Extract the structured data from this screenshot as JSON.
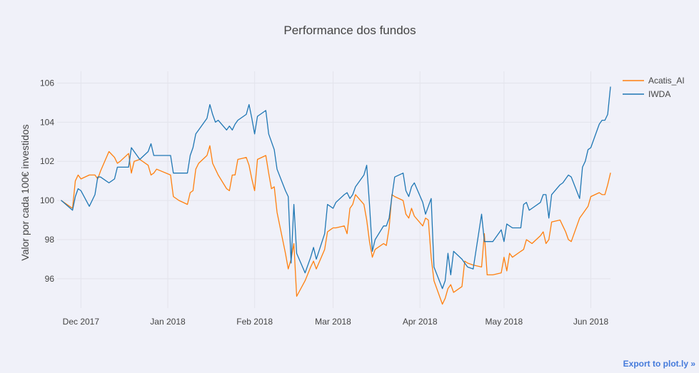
{
  "export_link": "Export to plot.ly »",
  "chart_data": {
    "type": "line",
    "title": "Performance dos fundos",
    "xlabel": "",
    "ylabel": "Valor por cada 100€ investidos",
    "ylim": [
      94.5,
      106.6
    ],
    "yticks": [
      96,
      98,
      100,
      102,
      104,
      106
    ],
    "ytick_labels": [
      "96",
      "98",
      "100",
      "102",
      "104",
      "106"
    ],
    "xlim": [
      "2017-11-23",
      "2018-06-08"
    ],
    "xticks": [
      "2017-12-01",
      "2018-01-01",
      "2018-02-01",
      "2018-03-01",
      "2018-04-01",
      "2018-05-01",
      "2018-06-01"
    ],
    "xtick_labels": [
      "Dec 2017",
      "Jan 2018",
      "Feb 2018",
      "Mar 2018",
      "Apr 2018",
      "May 2018",
      "Jun 2018"
    ],
    "legend_position": "top-right",
    "grid": true,
    "series": [
      {
        "name": "Acatis_AI",
        "color": "#ff7f0e",
        "points": [
          [
            "2017-11-24",
            100.0
          ],
          [
            "2017-11-28",
            99.6
          ],
          [
            "2017-11-29",
            101.0
          ],
          [
            "2017-11-30",
            101.3
          ],
          [
            "2017-12-01",
            101.1
          ],
          [
            "2017-12-04",
            101.3
          ],
          [
            "2017-12-06",
            101.3
          ],
          [
            "2017-12-07",
            101.1
          ],
          [
            "2017-12-08",
            101.5
          ],
          [
            "2017-12-11",
            102.5
          ],
          [
            "2017-12-13",
            102.2
          ],
          [
            "2017-12-14",
            101.9
          ],
          [
            "2017-12-15",
            102.0
          ],
          [
            "2017-12-18",
            102.4
          ],
          [
            "2017-12-19",
            101.4
          ],
          [
            "2017-12-20",
            102.0
          ],
          [
            "2017-12-22",
            102.1
          ],
          [
            "2017-12-25",
            101.8
          ],
          [
            "2017-12-26",
            101.3
          ],
          [
            "2017-12-27",
            101.4
          ],
          [
            "2017-12-28",
            101.6
          ],
          [
            "2018-01-02",
            101.3
          ],
          [
            "2018-01-03",
            100.2
          ],
          [
            "2018-01-05",
            100.0
          ],
          [
            "2018-01-08",
            99.8
          ],
          [
            "2018-01-09",
            100.4
          ],
          [
            "2018-01-10",
            100.5
          ],
          [
            "2018-01-11",
            101.6
          ],
          [
            "2018-01-12",
            101.9
          ],
          [
            "2018-01-15",
            102.3
          ],
          [
            "2018-01-16",
            102.8
          ],
          [
            "2018-01-17",
            101.9
          ],
          [
            "2018-01-18",
            101.6
          ],
          [
            "2018-01-19",
            101.3
          ],
          [
            "2018-01-22",
            100.6
          ],
          [
            "2018-01-23",
            100.5
          ],
          [
            "2018-01-24",
            101.3
          ],
          [
            "2018-01-25",
            101.3
          ],
          [
            "2018-01-26",
            102.1
          ],
          [
            "2018-01-29",
            102.2
          ],
          [
            "2018-01-30",
            101.8
          ],
          [
            "2018-01-31",
            101.1
          ],
          [
            "2018-02-01",
            100.5
          ],
          [
            "2018-02-02",
            102.1
          ],
          [
            "2018-02-05",
            102.3
          ],
          [
            "2018-02-06",
            101.4
          ],
          [
            "2018-02-07",
            100.6
          ],
          [
            "2018-02-08",
            100.7
          ],
          [
            "2018-02-09",
            99.4
          ],
          [
            "2018-02-12",
            97.3
          ],
          [
            "2018-02-13",
            96.5
          ],
          [
            "2018-02-14",
            97.0
          ],
          [
            "2018-02-15",
            97.8
          ],
          [
            "2018-02-16",
            95.1
          ],
          [
            "2018-02-19",
            95.9
          ],
          [
            "2018-02-21",
            96.6
          ],
          [
            "2018-02-22",
            96.9
          ],
          [
            "2018-02-23",
            96.5
          ],
          [
            "2018-02-26",
            97.5
          ],
          [
            "2018-02-27",
            98.4
          ],
          [
            "2018-02-28",
            98.5
          ],
          [
            "2018-03-01",
            98.6
          ],
          [
            "2018-03-02",
            98.6
          ],
          [
            "2018-03-05",
            98.7
          ],
          [
            "2018-03-06",
            98.3
          ],
          [
            "2018-03-07",
            99.6
          ],
          [
            "2018-03-08",
            99.8
          ],
          [
            "2018-03-09",
            100.3
          ],
          [
            "2018-03-12",
            99.8
          ],
          [
            "2018-03-13",
            99.0
          ],
          [
            "2018-03-14",
            97.9
          ],
          [
            "2018-03-15",
            97.1
          ],
          [
            "2018-03-16",
            97.5
          ],
          [
            "2018-03-19",
            97.8
          ],
          [
            "2018-03-20",
            97.7
          ],
          [
            "2018-03-21",
            98.6
          ],
          [
            "2018-03-22",
            100.3
          ],
          [
            "2018-03-23",
            100.2
          ],
          [
            "2018-03-26",
            100.0
          ],
          [
            "2018-03-27",
            99.3
          ],
          [
            "2018-03-28",
            99.1
          ],
          [
            "2018-03-29",
            99.6
          ],
          [
            "2018-03-30",
            99.2
          ],
          [
            "2018-04-02",
            98.7
          ],
          [
            "2018-04-03",
            99.1
          ],
          [
            "2018-04-04",
            99.0
          ],
          [
            "2018-04-05",
            97.1
          ],
          [
            "2018-04-06",
            95.9
          ],
          [
            "2018-04-09",
            94.7
          ],
          [
            "2018-04-10",
            95.0
          ],
          [
            "2018-04-11",
            95.5
          ],
          [
            "2018-04-12",
            95.7
          ],
          [
            "2018-04-13",
            95.3
          ],
          [
            "2018-04-16",
            95.6
          ],
          [
            "2018-04-17",
            96.9
          ],
          [
            "2018-04-18",
            96.8
          ],
          [
            "2018-04-20",
            96.7
          ],
          [
            "2018-04-23",
            96.6
          ],
          [
            "2018-04-24",
            98.3
          ],
          [
            "2018-04-25",
            96.2
          ],
          [
            "2018-04-27",
            96.2
          ],
          [
            "2018-04-30",
            96.3
          ],
          [
            "2018-05-01",
            97.1
          ],
          [
            "2018-05-02",
            96.4
          ],
          [
            "2018-05-03",
            97.3
          ],
          [
            "2018-05-04",
            97.1
          ],
          [
            "2018-05-07",
            97.4
          ],
          [
            "2018-05-08",
            97.5
          ],
          [
            "2018-05-09",
            98.0
          ],
          [
            "2018-05-10",
            97.9
          ],
          [
            "2018-05-11",
            97.8
          ],
          [
            "2018-05-14",
            98.2
          ],
          [
            "2018-05-15",
            98.4
          ],
          [
            "2018-05-16",
            97.8
          ],
          [
            "2018-05-17",
            98.0
          ],
          [
            "2018-05-18",
            98.9
          ],
          [
            "2018-05-21",
            99.0
          ],
          [
            "2018-05-22",
            98.7
          ],
          [
            "2018-05-23",
            98.4
          ],
          [
            "2018-05-24",
            98.0
          ],
          [
            "2018-05-25",
            97.9
          ],
          [
            "2018-05-28",
            99.1
          ],
          [
            "2018-05-29",
            99.3
          ],
          [
            "2018-05-30",
            99.5
          ],
          [
            "2018-05-31",
            99.7
          ],
          [
            "2018-06-01",
            100.2
          ],
          [
            "2018-06-04",
            100.4
          ],
          [
            "2018-06-05",
            100.3
          ],
          [
            "2018-06-06",
            100.3
          ],
          [
            "2018-06-07",
            100.8
          ],
          [
            "2018-06-08",
            101.4
          ]
        ]
      },
      {
        "name": "IWDA",
        "color": "#1f77b4",
        "points": [
          [
            "2017-11-24",
            100.0
          ],
          [
            "2017-11-28",
            99.5
          ],
          [
            "2017-11-29",
            100.2
          ],
          [
            "2017-11-30",
            100.6
          ],
          [
            "2017-12-01",
            100.5
          ],
          [
            "2017-12-04",
            99.7
          ],
          [
            "2017-12-06",
            100.3
          ],
          [
            "2017-12-07",
            101.2
          ],
          [
            "2017-12-08",
            101.2
          ],
          [
            "2017-12-11",
            100.9
          ],
          [
            "2017-12-13",
            101.1
          ],
          [
            "2017-12-14",
            101.7
          ],
          [
            "2017-12-15",
            101.7
          ],
          [
            "2017-12-18",
            101.7
          ],
          [
            "2017-12-19",
            102.7
          ],
          [
            "2017-12-20",
            102.5
          ],
          [
            "2017-12-22",
            102.1
          ],
          [
            "2017-12-25",
            102.5
          ],
          [
            "2017-12-26",
            102.9
          ],
          [
            "2017-12-27",
            102.3
          ],
          [
            "2017-12-28",
            102.3
          ],
          [
            "2018-01-02",
            102.3
          ],
          [
            "2018-01-03",
            101.4
          ],
          [
            "2018-01-05",
            101.4
          ],
          [
            "2018-01-08",
            101.4
          ],
          [
            "2018-01-09",
            102.3
          ],
          [
            "2018-01-10",
            102.7
          ],
          [
            "2018-01-11",
            103.4
          ],
          [
            "2018-01-12",
            103.6
          ],
          [
            "2018-01-15",
            104.2
          ],
          [
            "2018-01-16",
            104.9
          ],
          [
            "2018-01-17",
            104.4
          ],
          [
            "2018-01-18",
            104.0
          ],
          [
            "2018-01-19",
            104.1
          ],
          [
            "2018-01-22",
            103.6
          ],
          [
            "2018-01-23",
            103.8
          ],
          [
            "2018-01-24",
            103.6
          ],
          [
            "2018-01-25",
            103.9
          ],
          [
            "2018-01-26",
            104.1
          ],
          [
            "2018-01-29",
            104.4
          ],
          [
            "2018-01-30",
            104.9
          ],
          [
            "2018-01-31",
            104.2
          ],
          [
            "2018-02-01",
            103.4
          ],
          [
            "2018-02-02",
            104.3
          ],
          [
            "2018-02-05",
            104.6
          ],
          [
            "2018-02-06",
            103.4
          ],
          [
            "2018-02-07",
            103.0
          ],
          [
            "2018-02-08",
            102.6
          ],
          [
            "2018-02-09",
            101.6
          ],
          [
            "2018-02-12",
            100.5
          ],
          [
            "2018-02-13",
            100.2
          ],
          [
            "2018-02-14",
            96.8
          ],
          [
            "2018-02-15",
            99.8
          ],
          [
            "2018-02-16",
            97.3
          ],
          [
            "2018-02-19",
            96.3
          ],
          [
            "2018-02-21",
            97.1
          ],
          [
            "2018-02-22",
            97.6
          ],
          [
            "2018-02-23",
            97.0
          ],
          [
            "2018-02-26",
            98.3
          ],
          [
            "2018-02-27",
            99.8
          ],
          [
            "2018-02-28",
            99.7
          ],
          [
            "2018-03-01",
            99.6
          ],
          [
            "2018-03-02",
            99.9
          ],
          [
            "2018-03-05",
            100.3
          ],
          [
            "2018-03-06",
            100.4
          ],
          [
            "2018-03-07",
            100.1
          ],
          [
            "2018-03-08",
            100.3
          ],
          [
            "2018-03-09",
            100.7
          ],
          [
            "2018-03-12",
            101.3
          ],
          [
            "2018-03-13",
            101.8
          ],
          [
            "2018-03-14",
            99.8
          ],
          [
            "2018-03-15",
            97.4
          ],
          [
            "2018-03-16",
            98.0
          ],
          [
            "2018-03-19",
            98.7
          ],
          [
            "2018-03-20",
            98.7
          ],
          [
            "2018-03-21",
            99.1
          ],
          [
            "2018-03-22",
            100.2
          ],
          [
            "2018-03-23",
            101.2
          ],
          [
            "2018-03-26",
            101.4
          ],
          [
            "2018-03-27",
            100.5
          ],
          [
            "2018-03-28",
            100.2
          ],
          [
            "2018-03-29",
            100.7
          ],
          [
            "2018-03-30",
            100.9
          ],
          [
            "2018-04-02",
            99.9
          ],
          [
            "2018-04-03",
            99.3
          ],
          [
            "2018-04-04",
            99.7
          ],
          [
            "2018-04-05",
            100.1
          ],
          [
            "2018-04-06",
            96.6
          ],
          [
            "2018-04-09",
            95.5
          ],
          [
            "2018-04-10",
            95.9
          ],
          [
            "2018-04-11",
            97.3
          ],
          [
            "2018-04-12",
            96.2
          ],
          [
            "2018-04-13",
            97.4
          ],
          [
            "2018-04-16",
            97.0
          ],
          [
            "2018-04-17",
            96.8
          ],
          [
            "2018-04-18",
            96.6
          ],
          [
            "2018-04-20",
            96.5
          ],
          [
            "2018-04-23",
            99.3
          ],
          [
            "2018-04-24",
            97.9
          ],
          [
            "2018-04-25",
            97.9
          ],
          [
            "2018-04-27",
            97.9
          ],
          [
            "2018-04-30",
            98.5
          ],
          [
            "2018-05-01",
            97.9
          ],
          [
            "2018-05-02",
            98.8
          ],
          [
            "2018-05-03",
            98.7
          ],
          [
            "2018-05-04",
            98.6
          ],
          [
            "2018-05-07",
            98.6
          ],
          [
            "2018-05-08",
            99.8
          ],
          [
            "2018-05-09",
            99.9
          ],
          [
            "2018-05-10",
            99.5
          ],
          [
            "2018-05-11",
            99.6
          ],
          [
            "2018-05-14",
            99.9
          ],
          [
            "2018-05-15",
            100.3
          ],
          [
            "2018-05-16",
            100.3
          ],
          [
            "2018-05-17",
            99.1
          ],
          [
            "2018-05-18",
            100.3
          ],
          [
            "2018-05-21",
            100.8
          ],
          [
            "2018-05-22",
            100.9
          ],
          [
            "2018-05-23",
            101.1
          ],
          [
            "2018-05-24",
            101.3
          ],
          [
            "2018-05-25",
            101.2
          ],
          [
            "2018-05-28",
            100.1
          ],
          [
            "2018-05-29",
            101.7
          ],
          [
            "2018-05-30",
            102.0
          ],
          [
            "2018-05-31",
            102.6
          ],
          [
            "2018-06-01",
            102.7
          ],
          [
            "2018-06-04",
            103.9
          ],
          [
            "2018-06-05",
            104.1
          ],
          [
            "2018-06-06",
            104.1
          ],
          [
            "2018-06-07",
            104.4
          ],
          [
            "2018-06-08",
            105.8
          ]
        ]
      }
    ]
  }
}
